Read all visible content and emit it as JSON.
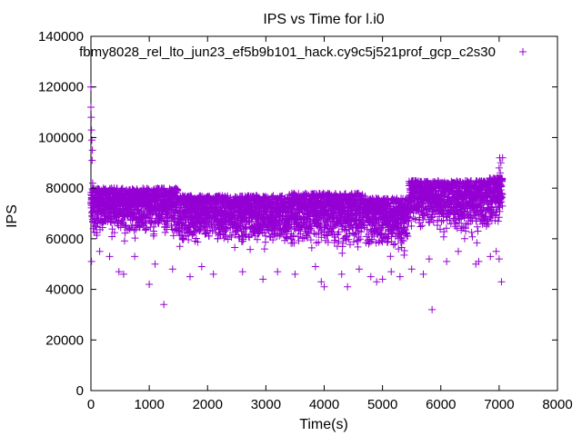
{
  "chart_data": {
    "type": "scatter",
    "title": "IPS vs Time for l.i0",
    "xlabel": "Time(s)",
    "ylabel": "IPS",
    "xlim": [
      0,
      8000
    ],
    "ylim": [
      0,
      140000
    ],
    "x_ticks": [
      0,
      1000,
      2000,
      3000,
      4000,
      5000,
      6000,
      7000,
      8000
    ],
    "y_ticks": [
      0,
      20000,
      40000,
      60000,
      80000,
      100000,
      120000,
      140000
    ],
    "x_tick_labels": [
      "0",
      "1000",
      "2000",
      "3000",
      "4000",
      "5000",
      "6000",
      "7000",
      "8000"
    ],
    "y_tick_labels": [
      "0",
      "20000",
      "40000",
      "60000",
      "80000",
      "100000",
      "120000",
      "140000"
    ],
    "grid": false,
    "legend_position": "top-right",
    "series": [
      {
        "name": "fbmy8028_rel_lto_jun23_ef5b9b101_hack.cy9c5j521prof_gcp_c2s30",
        "color": "#9400d3",
        "marker": "plus",
        "points": [
          [
            0,
            120000
          ],
          [
            0,
            112000
          ],
          [
            5,
            108000
          ],
          [
            10,
            103000
          ],
          [
            15,
            99000
          ],
          [
            20,
            91000
          ],
          [
            25,
            95000
          ],
          [
            10,
            51000
          ],
          [
            30,
            82000
          ],
          [
            40,
            64000
          ],
          [
            1250,
            34000
          ],
          [
            5850,
            32000
          ],
          [
            7040,
            43000
          ],
          [
            150,
            55000
          ],
          [
            320,
            53000
          ],
          [
            480,
            47000
          ],
          [
            560,
            46000
          ],
          [
            750,
            53000
          ],
          [
            1000,
            42000
          ],
          [
            1100,
            50000
          ],
          [
            1400,
            48000
          ],
          [
            1700,
            45000
          ],
          [
            1900,
            49000
          ],
          [
            2100,
            46000
          ],
          [
            2600,
            47000
          ],
          [
            2950,
            44000
          ],
          [
            3200,
            47000
          ],
          [
            3500,
            46000
          ],
          [
            3850,
            49000
          ],
          [
            3950,
            43000
          ],
          [
            4000,
            41000
          ],
          [
            4300,
            46000
          ],
          [
            4400,
            41000
          ],
          [
            4600,
            48000
          ],
          [
            4800,
            45000
          ],
          [
            4900,
            43000
          ],
          [
            5000,
            44000
          ],
          [
            5150,
            47000
          ],
          [
            5300,
            45000
          ],
          [
            5500,
            48000
          ],
          [
            5700,
            46000
          ],
          [
            5800,
            52000
          ],
          [
            6100,
            51000
          ],
          [
            6300,
            55000
          ],
          [
            6600,
            50000
          ],
          [
            6650,
            51000
          ],
          [
            6850,
            53000
          ],
          [
            6950,
            55000
          ],
          [
            7000,
            52000
          ],
          [
            6960,
            80000
          ],
          [
            6980,
            84000
          ],
          [
            7000,
            88000
          ],
          [
            7010,
            92000
          ],
          [
            7020,
            86000
          ],
          [
            7030,
            90000
          ],
          [
            7040,
            78000
          ],
          [
            7050,
            83000
          ],
          [
            7060,
            92000
          ],
          [
            6990,
            74000
          ]
        ]
      }
    ]
  }
}
